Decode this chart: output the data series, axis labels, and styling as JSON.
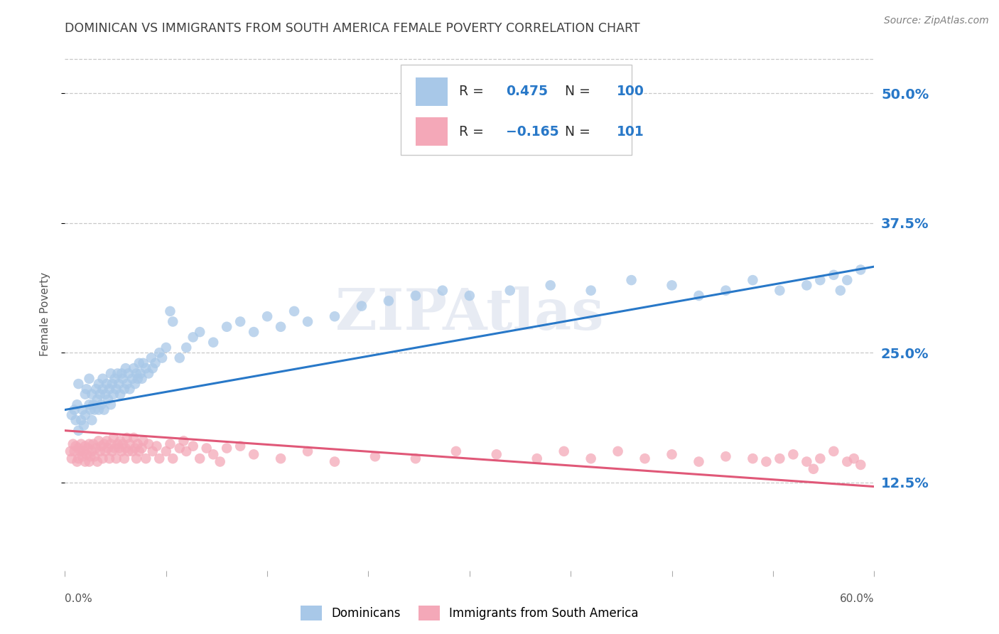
{
  "title": "DOMINICAN VS IMMIGRANTS FROM SOUTH AMERICA FEMALE POVERTY CORRELATION CHART",
  "source": "Source: ZipAtlas.com",
  "ylabel": "Female Poverty",
  "ytick_labels": [
    "12.5%",
    "25.0%",
    "37.5%",
    "50.0%"
  ],
  "ytick_values": [
    0.125,
    0.25,
    0.375,
    0.5
  ],
  "xmin": 0.0,
  "xmax": 0.6,
  "ymin": 0.04,
  "ymax": 0.535,
  "dominican_color": "#a8c8e8",
  "south_america_color": "#f4a8b8",
  "dominican_R": 0.475,
  "dominican_N": 100,
  "south_america_R": -0.165,
  "south_america_N": 101,
  "legend_label_1": "Dominicans",
  "legend_label_2": "Immigrants from South America",
  "watermark": "ZIPAtlas",
  "dominican_line_color": "#2878c8",
  "south_america_line_color": "#e05878",
  "ytick_label_color": "#2878c8",
  "background_color": "#ffffff",
  "grid_color": "#c8c8c8",
  "title_color": "#404040",
  "source_color": "#808080",
  "dom_intercept": 0.195,
  "dom_slope": 0.23,
  "sa_intercept": 0.175,
  "sa_slope": -0.09,
  "dominican_x": [
    0.005,
    0.007,
    0.008,
    0.009,
    0.01,
    0.01,
    0.012,
    0.013,
    0.014,
    0.015,
    0.015,
    0.016,
    0.018,
    0.018,
    0.019,
    0.02,
    0.02,
    0.021,
    0.022,
    0.023,
    0.024,
    0.025,
    0.025,
    0.026,
    0.027,
    0.028,
    0.028,
    0.029,
    0.03,
    0.031,
    0.032,
    0.033,
    0.034,
    0.034,
    0.035,
    0.036,
    0.037,
    0.038,
    0.039,
    0.04,
    0.041,
    0.042,
    0.043,
    0.044,
    0.045,
    0.046,
    0.047,
    0.048,
    0.05,
    0.051,
    0.052,
    0.053,
    0.054,
    0.055,
    0.056,
    0.057,
    0.058,
    0.06,
    0.062,
    0.064,
    0.065,
    0.067,
    0.07,
    0.072,
    0.075,
    0.078,
    0.08,
    0.085,
    0.09,
    0.095,
    0.1,
    0.11,
    0.12,
    0.13,
    0.14,
    0.15,
    0.16,
    0.17,
    0.18,
    0.2,
    0.22,
    0.24,
    0.26,
    0.28,
    0.3,
    0.33,
    0.36,
    0.39,
    0.42,
    0.45,
    0.47,
    0.49,
    0.51,
    0.53,
    0.55,
    0.56,
    0.57,
    0.575,
    0.58,
    0.59
  ],
  "dominican_y": [
    0.19,
    0.195,
    0.185,
    0.2,
    0.175,
    0.22,
    0.185,
    0.195,
    0.18,
    0.21,
    0.19,
    0.215,
    0.2,
    0.225,
    0.195,
    0.185,
    0.21,
    0.2,
    0.195,
    0.215,
    0.205,
    0.195,
    0.22,
    0.21,
    0.2,
    0.215,
    0.225,
    0.195,
    0.21,
    0.22,
    0.205,
    0.215,
    0.2,
    0.23,
    0.22,
    0.21,
    0.225,
    0.215,
    0.23,
    0.22,
    0.21,
    0.23,
    0.225,
    0.215,
    0.235,
    0.22,
    0.23,
    0.215,
    0.225,
    0.235,
    0.22,
    0.23,
    0.225,
    0.24,
    0.23,
    0.225,
    0.24,
    0.235,
    0.23,
    0.245,
    0.235,
    0.24,
    0.25,
    0.245,
    0.255,
    0.29,
    0.28,
    0.245,
    0.255,
    0.265,
    0.27,
    0.26,
    0.275,
    0.28,
    0.27,
    0.285,
    0.275,
    0.29,
    0.28,
    0.285,
    0.295,
    0.3,
    0.305,
    0.31,
    0.305,
    0.31,
    0.315,
    0.31,
    0.32,
    0.315,
    0.305,
    0.31,
    0.32,
    0.31,
    0.315,
    0.32,
    0.325,
    0.31,
    0.32,
    0.33
  ],
  "sa_x": [
    0.004,
    0.005,
    0.006,
    0.007,
    0.008,
    0.009,
    0.01,
    0.01,
    0.011,
    0.012,
    0.013,
    0.014,
    0.015,
    0.015,
    0.016,
    0.017,
    0.018,
    0.018,
    0.019,
    0.02,
    0.021,
    0.022,
    0.023,
    0.024,
    0.025,
    0.026,
    0.027,
    0.028,
    0.029,
    0.03,
    0.031,
    0.032,
    0.033,
    0.034,
    0.035,
    0.036,
    0.037,
    0.038,
    0.039,
    0.04,
    0.041,
    0.042,
    0.043,
    0.044,
    0.045,
    0.046,
    0.047,
    0.048,
    0.05,
    0.051,
    0.052,
    0.053,
    0.054,
    0.055,
    0.057,
    0.058,
    0.06,
    0.062,
    0.065,
    0.068,
    0.07,
    0.075,
    0.078,
    0.08,
    0.085,
    0.088,
    0.09,
    0.095,
    0.1,
    0.105,
    0.11,
    0.115,
    0.12,
    0.13,
    0.14,
    0.16,
    0.18,
    0.2,
    0.23,
    0.26,
    0.29,
    0.32,
    0.35,
    0.37,
    0.39,
    0.41,
    0.43,
    0.45,
    0.47,
    0.49,
    0.51,
    0.52,
    0.53,
    0.54,
    0.55,
    0.555,
    0.56,
    0.57,
    0.58,
    0.585,
    0.59
  ],
  "sa_y": [
    0.155,
    0.148,
    0.162,
    0.155,
    0.16,
    0.145,
    0.158,
    0.148,
    0.155,
    0.162,
    0.15,
    0.155,
    0.145,
    0.16,
    0.152,
    0.158,
    0.145,
    0.162,
    0.15,
    0.155,
    0.162,
    0.15,
    0.158,
    0.145,
    0.165,
    0.155,
    0.16,
    0.148,
    0.162,
    0.155,
    0.165,
    0.158,
    0.148,
    0.162,
    0.155,
    0.168,
    0.158,
    0.148,
    0.162,
    0.158,
    0.165,
    0.155,
    0.162,
    0.148,
    0.158,
    0.168,
    0.155,
    0.162,
    0.155,
    0.168,
    0.158,
    0.148,
    0.162,
    0.155,
    0.158,
    0.165,
    0.148,
    0.162,
    0.155,
    0.16,
    0.148,
    0.155,
    0.162,
    0.148,
    0.158,
    0.165,
    0.155,
    0.16,
    0.148,
    0.158,
    0.152,
    0.145,
    0.158,
    0.16,
    0.152,
    0.148,
    0.155,
    0.145,
    0.15,
    0.148,
    0.155,
    0.152,
    0.148,
    0.155,
    0.148,
    0.155,
    0.148,
    0.152,
    0.145,
    0.15,
    0.148,
    0.145,
    0.148,
    0.152,
    0.145,
    0.138,
    0.148,
    0.155,
    0.145,
    0.148,
    0.142
  ]
}
